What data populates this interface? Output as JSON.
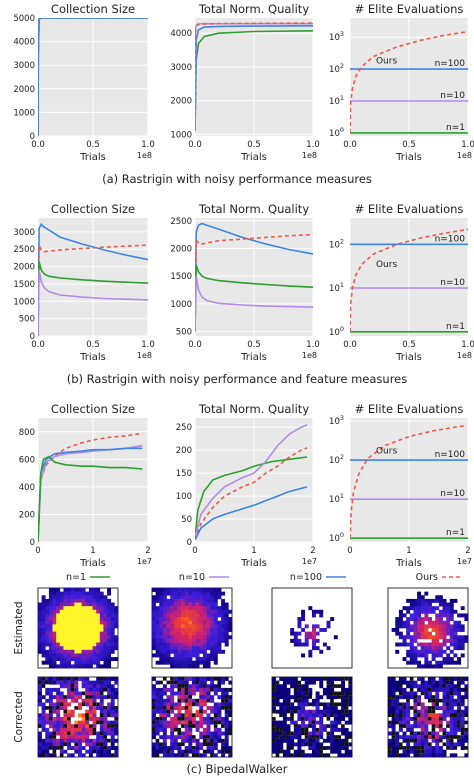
{
  "figure": {
    "captions": {
      "a": "(a) Rastrigin with noisy performance measures",
      "b": "(b) Rastrigin with noisy performance and feature measures",
      "c": "(c) BipedalWalker"
    },
    "legend": [
      {
        "label": "n=1",
        "color": "#2ca02c"
      },
      {
        "label": "n=10",
        "color": "#b48ae8"
      },
      {
        "label": "n=100",
        "color": "#3b86e8"
      },
      {
        "label": "Ours",
        "color": "#ef5a49"
      }
    ],
    "heatmap_row_labels": [
      "Estimated",
      "Corrected"
    ]
  },
  "colors": {
    "n1": "#2ca02c",
    "n10": "#b48ae8",
    "n100": "#3b86e8",
    "ours": "#ef5a49",
    "panel_bg": "#e8e8e8",
    "grid": "#ffffff"
  },
  "chart_data": [
    {
      "type": "line",
      "row": "a",
      "title": "Collection Size",
      "xlabel": "Trials",
      "x_multiplier": "1e8",
      "xlim": [
        0,
        1.0
      ],
      "ylim": [
        0,
        5000
      ],
      "yticks": [
        "0",
        "1000",
        "2000",
        "3000",
        "4000",
        "5000"
      ],
      "xticks": [
        "0.0",
        "0.5",
        "1.0"
      ],
      "series": [
        {
          "name": "n=1",
          "x": [
            0,
            0.003,
            0.01,
            0.03,
            1.0
          ],
          "y": [
            0,
            3500,
            4950,
            5000,
            5000
          ]
        },
        {
          "name": "n=10",
          "x": [
            0,
            0.003,
            0.01,
            0.03,
            1.0
          ],
          "y": [
            0,
            3500,
            4950,
            5000,
            5000
          ]
        },
        {
          "name": "Ours",
          "x": [
            0,
            0.003,
            0.01,
            0.03,
            1.0
          ],
          "y": [
            0,
            3500,
            4950,
            5000,
            5000
          ]
        },
        {
          "name": "n=100",
          "x": [
            0,
            0.003,
            0.01,
            0.03,
            1.0
          ],
          "y": [
            0,
            3500,
            4950,
            5000,
            5000
          ]
        }
      ]
    },
    {
      "type": "line",
      "row": "a",
      "title": "Total Norm. Quality",
      "xlabel": "Trials",
      "x_multiplier": "1e8",
      "xlim": [
        0,
        1.0
      ],
      "ylim": [
        950,
        4450
      ],
      "yticks": [
        "1000",
        "2000",
        "3000",
        "4000"
      ],
      "xticks": [
        "0.0",
        "0.5",
        "1.0"
      ],
      "series": [
        {
          "name": "n=1",
          "x": [
            0,
            0.01,
            0.03,
            0.08,
            0.2,
            0.5,
            1.0
          ],
          "y": [
            1100,
            3200,
            3700,
            3900,
            4000,
            4050,
            4070
          ]
        },
        {
          "name": "n=100",
          "x": [
            0,
            0.01,
            0.03,
            0.08,
            0.2,
            0.5,
            1.0
          ],
          "y": [
            1100,
            3800,
            4100,
            4180,
            4200,
            4210,
            4220
          ]
        },
        {
          "name": "n=10",
          "x": [
            0,
            0.005,
            0.02,
            0.06,
            0.2,
            0.5,
            1.0
          ],
          "y": [
            1100,
            4200,
            4270,
            4280,
            4280,
            4280,
            4280
          ]
        },
        {
          "name": "Ours",
          "x": [
            0,
            0.005,
            0.02,
            0.06,
            0.2,
            0.5,
            1.0
          ],
          "y": [
            1100,
            4150,
            4250,
            4270,
            4280,
            4290,
            4300
          ]
        }
      ]
    },
    {
      "type": "line",
      "row": "a",
      "title": "# Elite Evaluations",
      "yscale": "log",
      "xlabel": "Trials",
      "x_multiplier": "1e8",
      "xlim": [
        0,
        1.0
      ],
      "ylim": [
        0.8,
        4000
      ],
      "yticks": [
        "10^0",
        "10^1",
        "10^2",
        "10^3"
      ],
      "xticks": [
        "0.0",
        "0.5",
        "1.0"
      ],
      "series": [
        {
          "name": "n=1",
          "x": [
            0,
            1.0
          ],
          "y": [
            1,
            1
          ]
        },
        {
          "name": "n=10",
          "x": [
            0,
            1.0
          ],
          "y": [
            10,
            10
          ]
        },
        {
          "name": "n=100",
          "x": [
            0,
            1.0
          ],
          "y": [
            100,
            100
          ]
        },
        {
          "name": "Ours",
          "x": [
            0,
            0.005,
            0.02,
            0.05,
            0.1,
            0.2,
            0.4,
            0.6,
            0.8,
            1.0
          ],
          "y": [
            1,
            8,
            25,
            60,
            120,
            250,
            500,
            800,
            1150,
            1500
          ]
        }
      ],
      "annotations": [
        "Ours",
        "n=100",
        "n=10",
        "n=1"
      ]
    },
    {
      "type": "line",
      "row": "b",
      "title": "Collection Size",
      "xlabel": "Trials",
      "x_multiplier": "1e8",
      "xlim": [
        0,
        1.0
      ],
      "ylim": [
        0,
        3400
      ],
      "yticks": [
        "0",
        "500",
        "1000",
        "1500",
        "2000",
        "2500",
        "3000"
      ],
      "xticks": [
        "0.0",
        "0.5",
        "1.0"
      ],
      "series": [
        {
          "name": "n=100",
          "x": [
            0,
            0.01,
            0.03,
            0.05,
            0.1,
            0.2,
            0.4,
            0.6,
            0.8,
            1.0
          ],
          "y": [
            0,
            3100,
            3220,
            3150,
            3050,
            2850,
            2650,
            2480,
            2330,
            2200
          ]
        },
        {
          "name": "Ours",
          "x": [
            0,
            0.01,
            0.03,
            0.06,
            0.1,
            0.2,
            0.4,
            0.6,
            0.8,
            1.0
          ],
          "y": [
            0,
            2600,
            2480,
            2430,
            2450,
            2480,
            2520,
            2560,
            2590,
            2620
          ]
        },
        {
          "name": "n=1",
          "x": [
            0,
            0.01,
            0.03,
            0.06,
            0.1,
            0.2,
            0.4,
            0.6,
            0.8,
            1.0
          ],
          "y": [
            0,
            2150,
            1900,
            1780,
            1720,
            1670,
            1620,
            1580,
            1550,
            1520
          ]
        },
        {
          "name": "n=10",
          "x": [
            0,
            0.01,
            0.03,
            0.06,
            0.1,
            0.2,
            0.4,
            0.6,
            0.8,
            1.0
          ],
          "y": [
            0,
            1900,
            1550,
            1380,
            1280,
            1180,
            1120,
            1080,
            1060,
            1040
          ]
        }
      ]
    },
    {
      "type": "line",
      "row": "b",
      "title": "Total Norm. Quality",
      "xlabel": "Trials",
      "x_multiplier": "1e8",
      "xlim": [
        0,
        1.0
      ],
      "ylim": [
        420,
        2550
      ],
      "yticks": [
        "500",
        "1000",
        "1500",
        "2000",
        "2500"
      ],
      "xticks": [
        "0.0",
        "0.5",
        "1.0"
      ],
      "series": [
        {
          "name": "n=100",
          "x": [
            0,
            0.01,
            0.03,
            0.06,
            0.1,
            0.2,
            0.4,
            0.6,
            0.8,
            1.0
          ],
          "y": [
            500,
            2300,
            2420,
            2450,
            2420,
            2350,
            2200,
            2080,
            1980,
            1900
          ]
        },
        {
          "name": "Ours",
          "x": [
            0,
            0.01,
            0.03,
            0.06,
            0.1,
            0.2,
            0.4,
            0.6,
            0.8,
            1.0
          ],
          "y": [
            500,
            2150,
            2100,
            2080,
            2100,
            2140,
            2170,
            2200,
            2230,
            2250
          ]
        },
        {
          "name": "n=1",
          "x": [
            0,
            0.01,
            0.03,
            0.06,
            0.1,
            0.2,
            0.4,
            0.6,
            0.8,
            1.0
          ],
          "y": [
            500,
            1700,
            1580,
            1500,
            1460,
            1420,
            1380,
            1350,
            1320,
            1300
          ]
        },
        {
          "name": "n=10",
          "x": [
            0,
            0.01,
            0.03,
            0.06,
            0.1,
            0.2,
            0.4,
            0.6,
            0.8,
            1.0
          ],
          "y": [
            500,
            1500,
            1250,
            1120,
            1060,
            1010,
            980,
            960,
            950,
            940
          ]
        }
      ]
    },
    {
      "type": "line",
      "row": "b",
      "title": "# Elite Evaluations",
      "yscale": "log",
      "xlabel": "Trials",
      "x_multiplier": "1e8",
      "xlim": [
        0,
        1.0
      ],
      "ylim": [
        0.8,
        400
      ],
      "yticks": [
        "10^0",
        "10^1",
        "10^2"
      ],
      "xticks": [
        "0.0",
        "0.5",
        "1.0"
      ],
      "series": [
        {
          "name": "n=1",
          "x": [
            0,
            1.0
          ],
          "y": [
            1,
            1
          ]
        },
        {
          "name": "n=10",
          "x": [
            0,
            1.0
          ],
          "y": [
            10,
            10
          ]
        },
        {
          "name": "n=100",
          "x": [
            0,
            1.0
          ],
          "y": [
            100,
            100
          ]
        },
        {
          "name": "Ours",
          "x": [
            0,
            0.005,
            0.02,
            0.05,
            0.1,
            0.2,
            0.4,
            0.6,
            0.8,
            1.0
          ],
          "y": [
            1,
            4,
            10,
            20,
            35,
            60,
            100,
            140,
            180,
            220
          ]
        }
      ],
      "annotations": [
        "Ours",
        "n=100",
        "n=10",
        "n=1"
      ]
    },
    {
      "type": "line",
      "row": "c",
      "title": "Collection Size",
      "xlabel": "Trials",
      "x_multiplier": "1e7",
      "xlim": [
        0,
        2.0
      ],
      "ylim": [
        0,
        900
      ],
      "yticks": [
        "0",
        "200",
        "400",
        "600",
        "800"
      ],
      "xticks": [
        "0",
        "1",
        "2"
      ],
      "series": [
        {
          "name": "Ours",
          "x": [
            0,
            0.05,
            0.15,
            0.3,
            0.5,
            0.8,
            1.0,
            1.3,
            1.6,
            1.9
          ],
          "y": [
            0,
            450,
            560,
            620,
            680,
            720,
            740,
            760,
            770,
            790
          ]
        },
        {
          "name": "n=10",
          "x": [
            0,
            0.05,
            0.15,
            0.3,
            0.5,
            0.8,
            1.0,
            1.3,
            1.6,
            1.9
          ],
          "y": [
            0,
            450,
            580,
            620,
            640,
            650,
            660,
            670,
            680,
            700
          ]
        },
        {
          "name": "n=100",
          "x": [
            0,
            0.05,
            0.15,
            0.3,
            0.5,
            0.8,
            1.0,
            1.3,
            1.6,
            1.9
          ],
          "y": [
            0,
            500,
            600,
            640,
            650,
            660,
            670,
            670,
            680,
            680
          ]
        },
        {
          "name": "n=1",
          "x": [
            0,
            0.05,
            0.1,
            0.2,
            0.3,
            0.5,
            0.8,
            1.0,
            1.3,
            1.6,
            1.9
          ],
          "y": [
            0,
            500,
            600,
            620,
            580,
            560,
            550,
            550,
            540,
            540,
            530
          ]
        }
      ]
    },
    {
      "type": "line",
      "row": "c",
      "title": "Total Norm. Quality",
      "xlabel": "Trials",
      "x_multiplier": "1e7",
      "xlim": [
        0,
        2.0
      ],
      "ylim": [
        0,
        270
      ],
      "yticks": [
        "0",
        "50",
        "100",
        "150",
        "200",
        "250"
      ],
      "xticks": [
        "0",
        "1",
        "2"
      ],
      "series": [
        {
          "name": "n=1",
          "x": [
            0,
            0.05,
            0.15,
            0.3,
            0.5,
            0.8,
            1.0,
            1.3,
            1.6,
            1.9
          ],
          "y": [
            10,
            70,
            110,
            135,
            145,
            155,
            165,
            175,
            180,
            185
          ]
        },
        {
          "name": "n=10",
          "x": [
            0,
            0.1,
            0.3,
            0.5,
            0.8,
            1.0,
            1.2,
            1.4,
            1.6,
            1.8,
            1.9
          ],
          "y": [
            10,
            60,
            95,
            120,
            140,
            150,
            175,
            210,
            235,
            250,
            255
          ]
        },
        {
          "name": "Ours",
          "x": [
            0,
            0.1,
            0.3,
            0.5,
            0.8,
            1.0,
            1.2,
            1.4,
            1.6,
            1.8,
            1.9
          ],
          "y": [
            5,
            40,
            75,
            100,
            120,
            130,
            150,
            165,
            185,
            200,
            205
          ]
        },
        {
          "name": "n=100",
          "x": [
            0,
            0.1,
            0.3,
            0.5,
            0.8,
            1.0,
            1.3,
            1.6,
            1.9
          ],
          "y": [
            5,
            30,
            50,
            60,
            72,
            80,
            95,
            110,
            120
          ]
        }
      ]
    },
    {
      "type": "line",
      "row": "c",
      "title": "# Elite Evaluations",
      "yscale": "log",
      "xlabel": "Trials",
      "x_multiplier": "1e7",
      "xlim": [
        0,
        2.0
      ],
      "ylim": [
        0.8,
        1200
      ],
      "yticks": [
        "10^0",
        "10^1",
        "10^2",
        "10^3"
      ],
      "xticks": [
        "0",
        "1",
        "2"
      ],
      "series": [
        {
          "name": "n=1",
          "x": [
            0,
            2.0
          ],
          "y": [
            1,
            1
          ]
        },
        {
          "name": "n=10",
          "x": [
            0,
            2.0
          ],
          "y": [
            10,
            10
          ]
        },
        {
          "name": "n=100",
          "x": [
            0,
            2.0
          ],
          "y": [
            100,
            100
          ]
        },
        {
          "name": "Ours",
          "x": [
            0,
            0.02,
            0.06,
            0.15,
            0.3,
            0.6,
            1.0,
            1.4,
            1.8,
            1.95
          ],
          "y": [
            1,
            5,
            15,
            45,
            110,
            240,
            400,
            560,
            700,
            760
          ]
        }
      ],
      "annotations": [
        "Ours",
        "n=100",
        "n=10",
        "n=1"
      ]
    }
  ]
}
